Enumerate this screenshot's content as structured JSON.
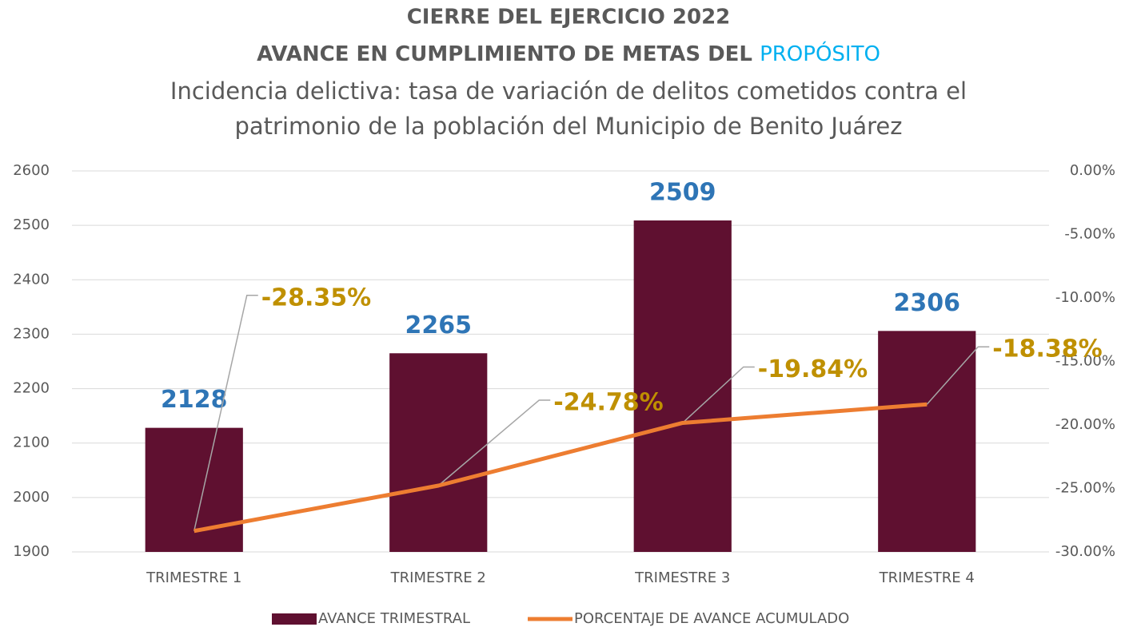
{
  "chart_data": {
    "type": "bar",
    "title": [
      "CIERRE DEL EJERCICIO 2022",
      "AVANCE EN CUMPLIMIENTO DE METAS DEL",
      "PROPÓSITO"
    ],
    "subtitle": [
      "Incidencia delictiva: tasa de variación de delitos cometidos contra el",
      "patrimonio de la población del Municipio de Benito Juárez"
    ],
    "categories": [
      "TRIMESTRE 1",
      "TRIMESTRE 2",
      "TRIMESTRE 3",
      "TRIMESTRE 4"
    ],
    "series": [
      {
        "name": "AVANCE TRIMESTRAL",
        "type": "bar",
        "color": "#5f1030",
        "values": [
          2128,
          2265,
          2509,
          2306
        ]
      },
      {
        "name": "PORCENTAJE DE AVANCE ACUMULADO",
        "type": "line",
        "axis": "y2",
        "color": "#ed7d31",
        "values": [
          -28.35,
          -24.78,
          -19.84,
          -18.38
        ],
        "value_labels": [
          "-28.35%",
          "-24.78%",
          "-19.84%",
          "-18.38%"
        ]
      }
    ],
    "ylim": [
      1900,
      2600
    ],
    "yticks": [
      1900,
      2000,
      2100,
      2200,
      2300,
      2400,
      2500,
      2600
    ],
    "y2lim": [
      -30,
      0
    ],
    "y2ticks": [
      {
        "value": -30,
        "label": "-30.00%"
      },
      {
        "value": -25,
        "label": "-25.00%"
      },
      {
        "value": -20,
        "label": "-20.00%"
      },
      {
        "value": -15,
        "label": "-15.00%"
      },
      {
        "value": -10,
        "label": "-10.00%"
      },
      {
        "value": -5,
        "label": "-5.00%"
      },
      {
        "value": 0,
        "label": "0.00%"
      }
    ],
    "grid": true,
    "legend": "bottom"
  }
}
